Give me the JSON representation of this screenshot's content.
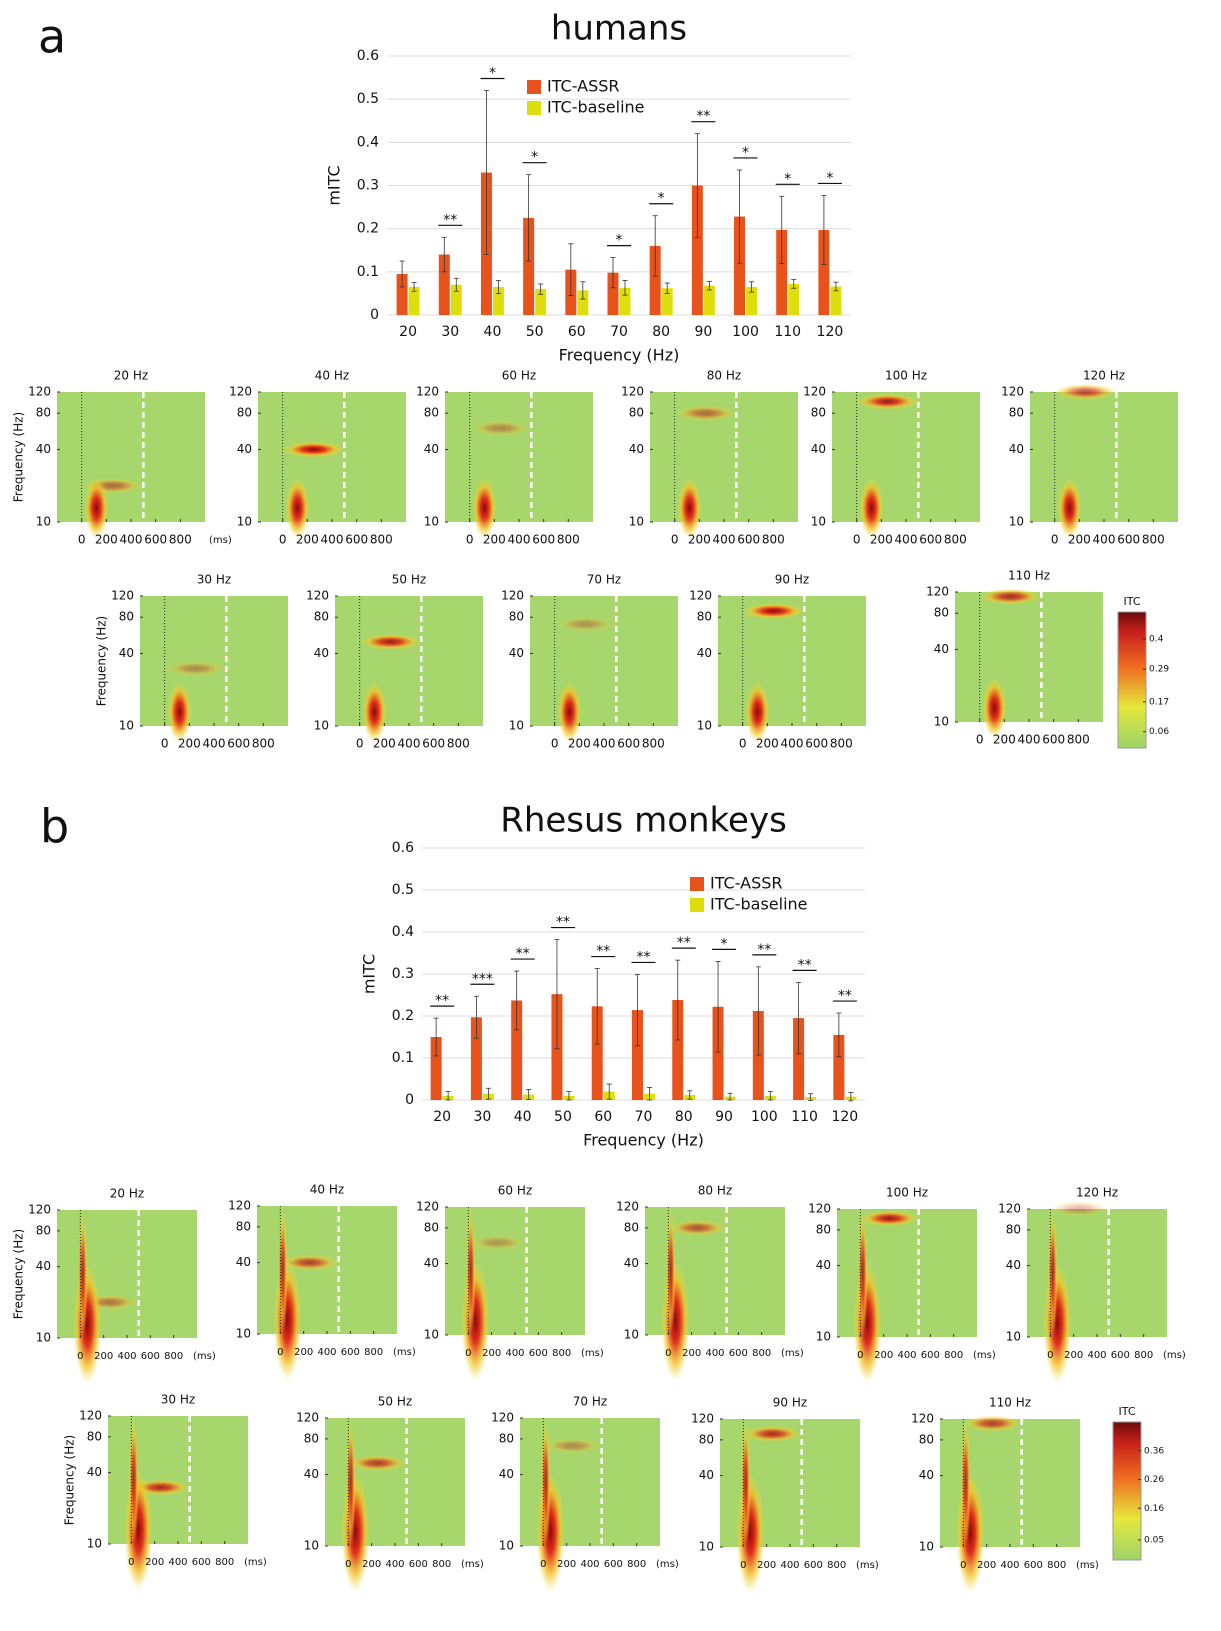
{
  "panel_labels": [
    "a",
    "b"
  ],
  "chart_data": [
    {
      "type": "bar",
      "title": "humans",
      "ylabel": "mITC",
      "xlabel": "Frequency (Hz)",
      "categories": [
        "20",
        "30",
        "40",
        "50",
        "60",
        "70",
        "80",
        "90",
        "100",
        "110",
        "120"
      ],
      "ylim": [
        0,
        0.6
      ],
      "yticks": [
        0,
        0.1,
        0.2,
        0.3,
        0.4,
        0.5,
        0.6
      ],
      "grid": true,
      "series": [
        {
          "name": "ITC-ASSR",
          "color": "#e8531c",
          "values": [
            0.095,
            0.14,
            0.33,
            0.225,
            0.105,
            0.098,
            0.16,
            0.3,
            0.228,
            0.197,
            0.197
          ],
          "errors": [
            0.03,
            0.04,
            0.19,
            0.1,
            0.06,
            0.035,
            0.07,
            0.12,
            0.108,
            0.078,
            0.08
          ]
        },
        {
          "name": "ITC-baseline",
          "color": "#dede0c",
          "values": [
            0.065,
            0.07,
            0.065,
            0.06,
            0.057,
            0.063,
            0.062,
            0.068,
            0.065,
            0.072,
            0.066
          ],
          "errors": [
            0.01,
            0.015,
            0.015,
            0.012,
            0.02,
            0.017,
            0.012,
            0.01,
            0.012,
            0.01,
            0.01
          ]
        }
      ],
      "significance": [
        null,
        "**",
        "*",
        "*",
        null,
        "*",
        "*",
        "**",
        "*",
        "*",
        "*"
      ]
    },
    {
      "type": "bar",
      "title": "Rhesus monkeys",
      "ylabel": "mITC",
      "xlabel": "Frequency (Hz)",
      "categories": [
        "20",
        "30",
        "40",
        "50",
        "60",
        "70",
        "80",
        "90",
        "100",
        "110",
        "120"
      ],
      "ylim": [
        0,
        0.6
      ],
      "yticks": [
        0,
        0.1,
        0.2,
        0.3,
        0.4,
        0.5,
        0.6
      ],
      "grid": true,
      "series": [
        {
          "name": "ITC-ASSR",
          "color": "#e8531c",
          "values": [
            0.15,
            0.197,
            0.237,
            0.252,
            0.223,
            0.214,
            0.238,
            0.222,
            0.212,
            0.195,
            0.155
          ],
          "errors": [
            0.045,
            0.05,
            0.07,
            0.13,
            0.09,
            0.085,
            0.095,
            0.108,
            0.105,
            0.085,
            0.052
          ]
        },
        {
          "name": "ITC-baseline",
          "color": "#dede0c",
          "values": [
            0.01,
            0.015,
            0.013,
            0.01,
            0.02,
            0.015,
            0.012,
            0.008,
            0.01,
            0.007,
            0.008
          ],
          "errors": [
            0.01,
            0.013,
            0.012,
            0.01,
            0.018,
            0.015,
            0.01,
            0.008,
            0.01,
            0.008,
            0.01
          ]
        }
      ],
      "significance": [
        "**",
        "***",
        "**",
        "**",
        "**",
        "**",
        "**",
        "*",
        "**",
        "**",
        "**"
      ]
    }
  ],
  "spectrograms": [
    {
      "titles": [
        "20 Hz",
        "40 Hz",
        "60 Hz",
        "80 Hz",
        "100 Hz",
        "120 Hz",
        "30 Hz",
        "50 Hz",
        "70 Hz",
        "90 Hz",
        "110 Hz"
      ],
      "ylabel": "Frequency (Hz)",
      "ylog": true,
      "ylim": [
        10,
        120
      ],
      "yticks": [
        10,
        40,
        80,
        120
      ],
      "xlim": [
        -200,
        1000
      ],
      "xticks": [
        0,
        200,
        400,
        600,
        800
      ],
      "xunit": "(ms)",
      "colorbar": {
        "label": "ITC",
        "clim": [
          0,
          0.5
        ],
        "ticks": [
          0.06,
          0.17,
          0.29,
          0.4
        ]
      }
    },
    {
      "titles": [
        "20 Hz",
        "40 Hz",
        "60 Hz",
        "80 Hz",
        "100 Hz",
        "120 Hz",
        "30 Hz",
        "50 Hz",
        "70 Hz",
        "90 Hz",
        "110 Hz"
      ],
      "ylabel": "Frequency (Hz)",
      "ylog": true,
      "ylim": [
        10,
        120
      ],
      "yticks": [
        10,
        40,
        80,
        120
      ],
      "xlim": [
        -200,
        1000
      ],
      "xticks": [
        0,
        200,
        400,
        600,
        800
      ],
      "xunit": "(ms)",
      "colorbar": {
        "label": "ITC",
        "clim": [
          -0.02,
          0.46
        ],
        "ticks": [
          0.05,
          0.16,
          0.26,
          0.36
        ]
      }
    }
  ]
}
